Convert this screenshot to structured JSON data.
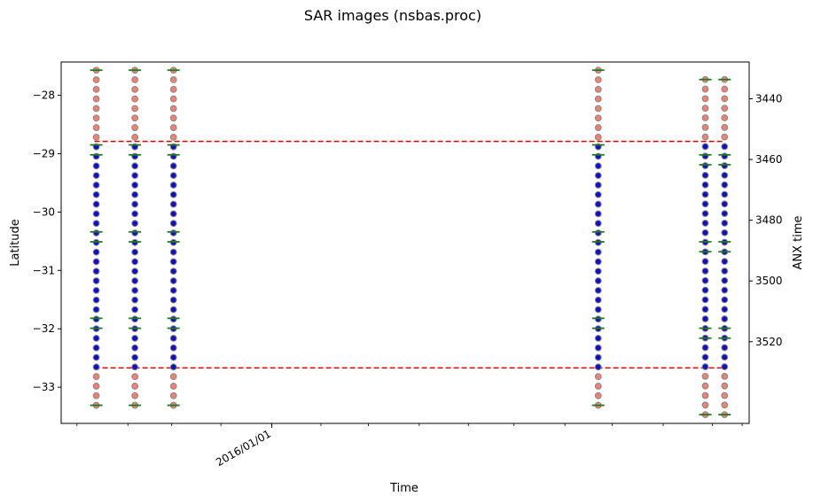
{
  "chart_data": {
    "type": "scatter",
    "title": "SAR images (nsbas.proc)",
    "xlabel": "Time",
    "ylabel": "Latitude",
    "y2label": "ANX time",
    "ylim": [
      -33.62,
      -27.43
    ],
    "y2lim": [
      3546.9,
      3427.9
    ],
    "yticks": [
      -28,
      -29,
      -30,
      -31,
      -32,
      -33
    ],
    "yticklabels": [
      "−28",
      "−29",
      "−30",
      "−31",
      "−32",
      "−33"
    ],
    "y2ticks": [
      3440,
      3460,
      3480,
      3500,
      3520
    ],
    "y2ticklabels": [
      "3440",
      "3460",
      "3480",
      "3500",
      "3520"
    ],
    "xlim": [
      -6.0,
      13.6
    ],
    "xtick_labels": [
      {
        "x": 0,
        "label": "2016/01/01"
      }
    ],
    "xminor_ticks": [
      -5.55,
      -4.1,
      -2.85,
      -1.45,
      0,
      1.4,
      2.75,
      4.2,
      5.6,
      6.9,
      8.35,
      9.7,
      11.15,
      12.55,
      13.4
    ],
    "bounds": {
      "lat_top": -28.79,
      "lat_bottom": -32.67,
      "color": "#e00000",
      "style": "dashed"
    },
    "colors": {
      "inside": "#1010c8",
      "outside": "#f08070",
      "edge": "#888888",
      "burst_marker": "#1f7a1f",
      "bounds": "#e00000"
    },
    "series": [
      {
        "x": -5.0,
        "lat_start": -27.57,
        "lat_end": -33.31,
        "burst_marks": [
          -27.57,
          -28.85,
          -29.02,
          -30.34,
          -30.51,
          -31.82,
          -31.99,
          -33.31
        ]
      },
      {
        "x": -3.9,
        "lat_start": -27.57,
        "lat_end": -33.31,
        "burst_marks": [
          -27.57,
          -28.85,
          -29.02,
          -30.34,
          -30.51,
          -31.82,
          -31.99,
          -33.31
        ]
      },
      {
        "x": -2.8,
        "lat_start": -27.57,
        "lat_end": -33.31,
        "burst_marks": [
          -27.57,
          -28.85,
          -29.02,
          -30.34,
          -30.51,
          -31.82,
          -31.99,
          -33.31
        ]
      },
      {
        "x": 9.3,
        "lat_start": -27.57,
        "lat_end": -33.31,
        "burst_marks": [
          -27.57,
          -28.85,
          -29.02,
          -30.34,
          -30.51,
          -31.82,
          -31.99,
          -33.31
        ]
      },
      {
        "x": 12.35,
        "lat_start": -27.73,
        "lat_end": -33.47,
        "burst_marks": [
          -27.73,
          -29.02,
          -29.19,
          -30.51,
          -30.68,
          -31.99,
          -32.16,
          -33.47
        ]
      },
      {
        "x": 12.9,
        "lat_start": -27.73,
        "lat_end": -33.47,
        "burst_marks": [
          -27.73,
          -29.02,
          -29.19,
          -30.51,
          -30.68,
          -31.99,
          -32.16,
          -33.47
        ]
      }
    ]
  }
}
